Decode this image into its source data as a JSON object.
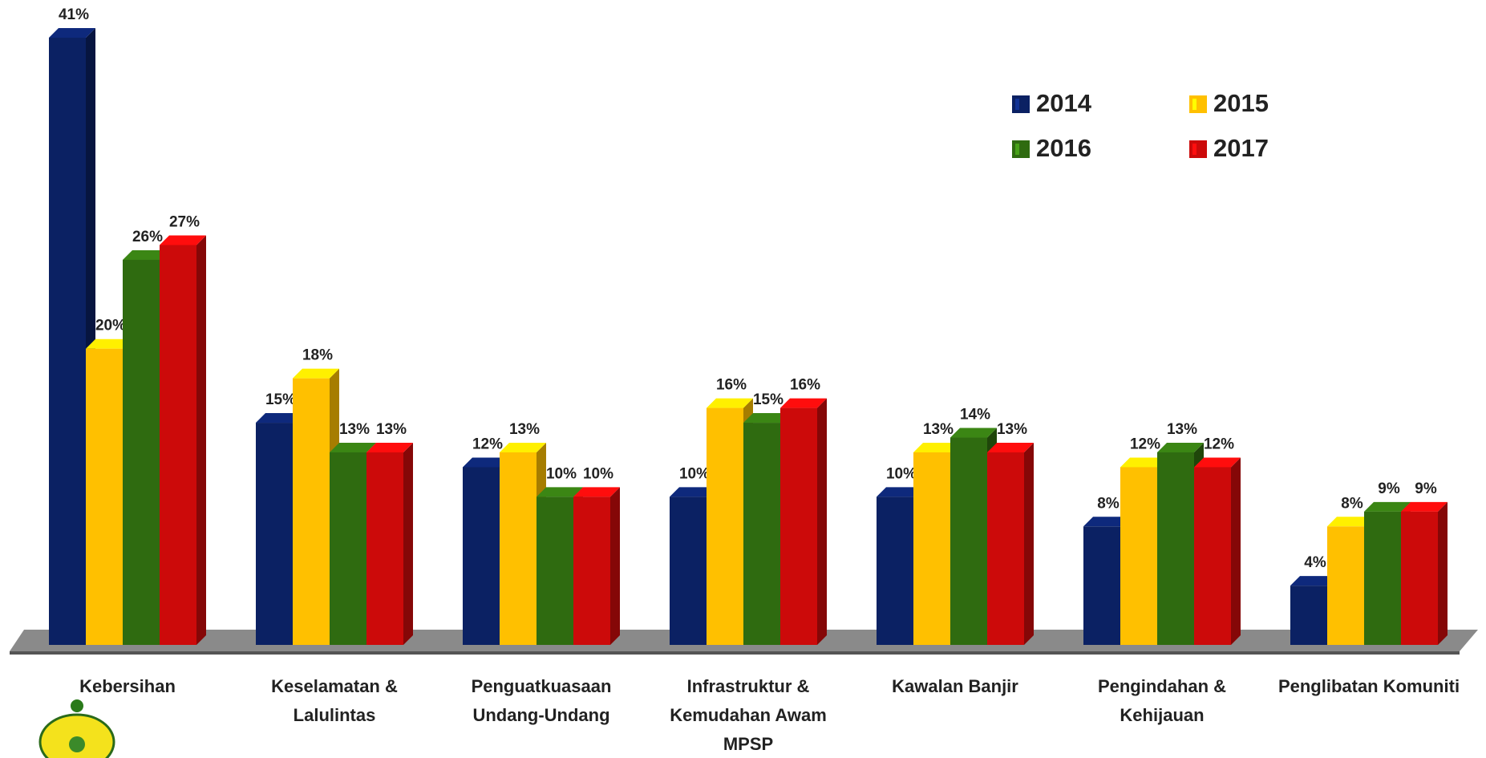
{
  "chart_data": {
    "type": "bar3d",
    "categories": [
      "Kebersihan",
      "Keselamatan & Lalulintas",
      "Penguatkuasaan Undang-Undang",
      "Infrastruktur & Kemudahan Awam MPSP",
      "Kawalan Banjir",
      "Pengindahan & Kehijauan",
      "Penglibatan Komuniti"
    ],
    "series": [
      {
        "name": "2014",
        "color": "#0b2163",
        "values": [
          41,
          15,
          12,
          10,
          10,
          8,
          4
        ],
        "value_labels": [
          "41%",
          "15%",
          "12%",
          "10%",
          "10%",
          "8%",
          "4%"
        ]
      },
      {
        "name": "2015",
        "color": "#ffc000",
        "values": [
          20,
          18,
          13,
          16,
          13,
          12,
          8
        ],
        "value_labels": [
          "20%",
          "18%",
          "13%",
          "16%",
          "13%",
          "12%",
          "8%"
        ]
      },
      {
        "name": "2016",
        "color": "#2f6b10",
        "values": [
          26,
          13,
          10,
          15,
          14,
          13,
          9
        ],
        "value_labels": [
          "26%",
          "13%",
          "10%",
          "15%",
          "14%",
          "13%",
          "9%"
        ]
      },
      {
        "name": "2017",
        "color": "#cc0a0a",
        "values": [
          27,
          13,
          10,
          16,
          13,
          12,
          9
        ],
        "value_labels": [
          "27%",
          "13%",
          "10%",
          "16%",
          "13%",
          "12%",
          "9%"
        ]
      }
    ],
    "legend": "top-right"
  }
}
